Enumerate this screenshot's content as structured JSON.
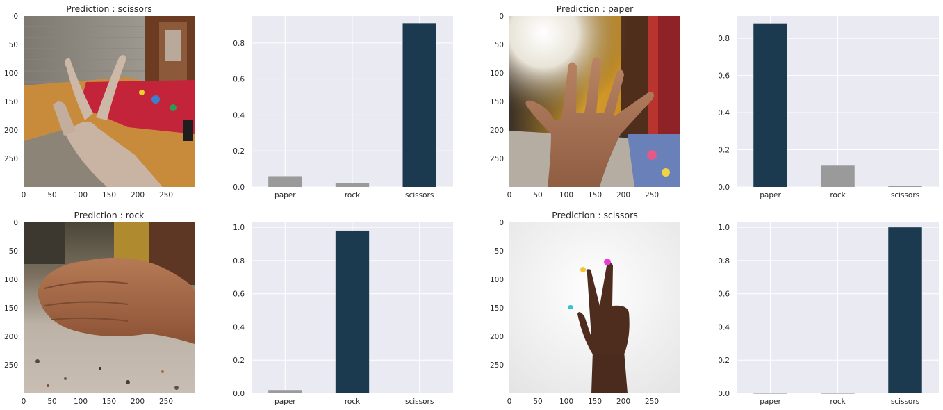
{
  "colors": {
    "axes_bg": "#EAEAF2",
    "grid": "#FFFFFF",
    "predicted_bar": "#1B3A4F",
    "other_bar": "#9A9A9A",
    "text": "#262626"
  },
  "chart_data": [
    {
      "type": "image",
      "title": "Prediction : scissors",
      "scene": "hand-scissors-bed",
      "xticks": [
        0,
        50,
        100,
        150,
        200,
        250
      ],
      "yticks": [
        0,
        50,
        100,
        150,
        200,
        250
      ],
      "xlim": [
        0,
        300
      ],
      "ylim": [
        300,
        0
      ],
      "grid": false
    },
    {
      "type": "bar",
      "categories": [
        "paper",
        "rock",
        "scissors"
      ],
      "values": [
        0.06,
        0.02,
        0.91
      ],
      "highlight_index": 2,
      "ylim": [
        0,
        0.95
      ],
      "yticks": [
        "0.0",
        "0.2",
        "0.4",
        "0.6",
        "0.8"
      ],
      "grid": true
    },
    {
      "type": "image",
      "title": "Prediction : paper",
      "scene": "hand-paper-room",
      "xticks": [
        0,
        50,
        100,
        150,
        200,
        250
      ],
      "yticks": [
        0,
        50,
        100,
        150,
        200,
        250
      ],
      "xlim": [
        0,
        300
      ],
      "ylim": [
        300,
        0
      ],
      "grid": false
    },
    {
      "type": "bar",
      "categories": [
        "paper",
        "rock",
        "scissors"
      ],
      "values": [
        0.88,
        0.115,
        0.005
      ],
      "highlight_index": 0,
      "ylim": [
        0,
        0.92
      ],
      "yticks": [
        "0.0",
        "0.2",
        "0.4",
        "0.6",
        "0.8"
      ],
      "grid": true
    },
    {
      "type": "image",
      "title": "Prediction : rock",
      "scene": "hand-rock-floor",
      "xticks": [
        0,
        50,
        100,
        150,
        200,
        250
      ],
      "yticks": [
        0,
        50,
        100,
        150,
        200,
        250
      ],
      "xlim": [
        0,
        300
      ],
      "ylim": [
        300,
        0
      ],
      "grid": false
    },
    {
      "type": "bar",
      "categories": [
        "paper",
        "rock",
        "scissors"
      ],
      "values": [
        0.02,
        0.98,
        0.003
      ],
      "highlight_index": 1,
      "ylim": [
        0,
        1.03
      ],
      "yticks": [
        "0.0",
        "0.2",
        "0.4",
        "0.6",
        "0.8",
        "1.0"
      ],
      "grid": true
    },
    {
      "type": "image",
      "title": "Prediction : scissors",
      "scene": "hand-scissors-white",
      "xticks": [
        0,
        50,
        100,
        150,
        200,
        250
      ],
      "yticks": [
        0,
        50,
        100,
        150,
        200,
        250
      ],
      "xlim": [
        0,
        300
      ],
      "ylim": [
        300,
        0
      ],
      "grid": false
    },
    {
      "type": "bar",
      "categories": [
        "paper",
        "rock",
        "scissors"
      ],
      "values": [
        0.0,
        0.0,
        1.0
      ],
      "highlight_index": 2,
      "ylim": [
        0,
        1.03
      ],
      "yticks": [
        "0.0",
        "0.2",
        "0.4",
        "0.6",
        "0.8",
        "1.0"
      ],
      "grid": true
    }
  ]
}
